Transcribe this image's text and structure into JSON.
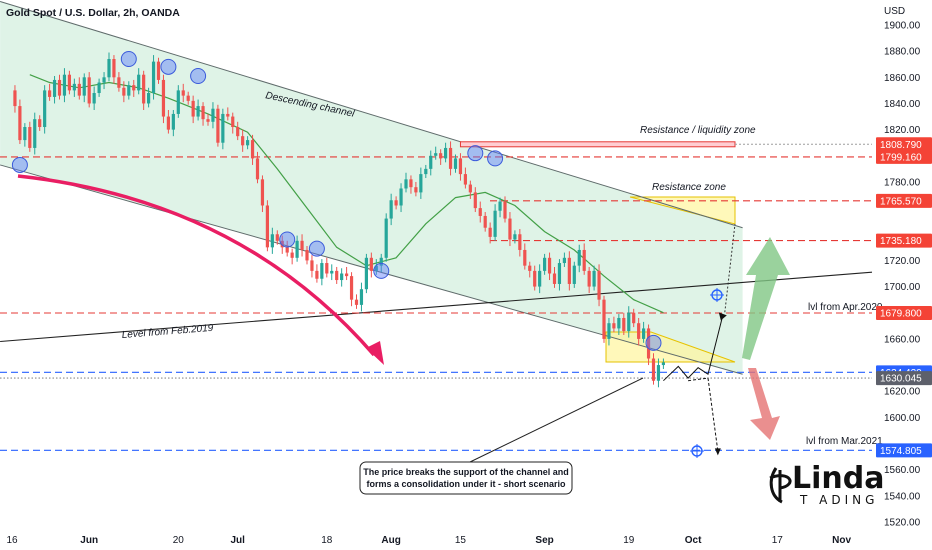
{
  "header": {
    "title": "Gold Spot / U.S. Dollar, 2h, OANDA",
    "currency": "USD"
  },
  "colors": {
    "up": "#26a69a",
    "down": "#ef5350",
    "channel_fill": "#d4efdf",
    "red_dash": "#e53935",
    "blue_dash": "#2962ff",
    "zone_fill": "#fff59d",
    "ma": "#43a047",
    "arrow_pink": "#e91e63",
    "arrow_green": "#81c784",
    "arrow_red": "#e57373",
    "tag_red": "#f44336",
    "tag_blue": "#2962ff",
    "tag_dark": "#5d606b",
    "circle": "#5c7cfa"
  },
  "chart_data": {
    "type": "candlestick",
    "title": "Gold Spot / U.S. Dollar, 2h, OANDA",
    "ylim": [
      1505,
      1920
    ],
    "y_ticks": [
      1520,
      1540,
      1560,
      1580,
      1600,
      1620,
      1640,
      1660,
      1680,
      1700,
      1720,
      1740,
      1760,
      1780,
      1800,
      1820,
      1840,
      1860,
      1880,
      1900
    ],
    "x_ticks": [
      {
        "label": "16",
        "x": 0,
        "bold": false
      },
      {
        "label": "Jun",
        "x": 16,
        "bold": true
      },
      {
        "label": "20",
        "x": 34,
        "bold": false
      },
      {
        "label": "Jul",
        "x": 46,
        "bold": true
      },
      {
        "label": "18",
        "x": 64,
        "bold": false
      },
      {
        "label": "Aug",
        "x": 77,
        "bold": true
      },
      {
        "label": "15",
        "x": 91,
        "bold": false
      },
      {
        "label": "Sep",
        "x": 108,
        "bold": true
      },
      {
        "label": "19",
        "x": 125,
        "bold": false
      },
      {
        "label": "Oct",
        "x": 138,
        "bold": true
      },
      {
        "label": "17",
        "x": 155,
        "bold": false
      },
      {
        "label": "Nov",
        "x": 168,
        "bold": true
      }
    ],
    "price_path": [
      [
        0,
        1850
      ],
      [
        1,
        1838
      ],
      [
        2,
        1812
      ],
      [
        3,
        1822
      ],
      [
        4,
        1806
      ],
      [
        5,
        1828
      ],
      [
        6,
        1822
      ],
      [
        7,
        1850
      ],
      [
        8,
        1845
      ],
      [
        9,
        1858
      ],
      [
        10,
        1846
      ],
      [
        11,
        1862
      ],
      [
        12,
        1850
      ],
      [
        13,
        1855
      ],
      [
        14,
        1846
      ],
      [
        15,
        1860
      ],
      [
        16,
        1840
      ],
      [
        17,
        1848
      ],
      [
        18,
        1856
      ],
      [
        19,
        1860
      ],
      [
        20,
        1874
      ],
      [
        21,
        1860
      ],
      [
        22,
        1852
      ],
      [
        23,
        1846
      ],
      [
        24,
        1854
      ],
      [
        25,
        1850
      ],
      [
        26,
        1862
      ],
      [
        27,
        1840
      ],
      [
        28,
        1848
      ],
      [
        29,
        1872
      ],
      [
        30,
        1858
      ],
      [
        31,
        1830
      ],
      [
        32,
        1820
      ],
      [
        33,
        1832
      ],
      [
        34,
        1850
      ],
      [
        35,
        1846
      ],
      [
        36,
        1842
      ],
      [
        37,
        1830
      ],
      [
        38,
        1838
      ],
      [
        39,
        1828
      ],
      [
        40,
        1826
      ],
      [
        41,
        1836
      ],
      [
        42,
        1810
      ],
      [
        43,
        1832
      ],
      [
        44,
        1830
      ],
      [
        45,
        1822
      ],
      [
        46,
        1815
      ],
      [
        47,
        1808
      ],
      [
        48,
        1812
      ],
      [
        49,
        1798
      ],
      [
        50,
        1782
      ],
      [
        51,
        1762
      ],
      [
        52,
        1730
      ],
      [
        53,
        1740
      ],
      [
        54,
        1735
      ],
      [
        55,
        1730
      ],
      [
        56,
        1726
      ],
      [
        57,
        1722
      ],
      [
        58,
        1735
      ],
      [
        59,
        1728
      ],
      [
        60,
        1720
      ],
      [
        61,
        1712
      ],
      [
        62,
        1706
      ],
      [
        63,
        1718
      ],
      [
        64,
        1710
      ],
      [
        65,
        1712
      ],
      [
        66,
        1705
      ],
      [
        67,
        1710
      ],
      [
        68,
        1708
      ],
      [
        69,
        1690
      ],
      [
        70,
        1686
      ],
      [
        71,
        1698
      ],
      [
        72,
        1722
      ],
      [
        73,
        1712
      ],
      [
        74,
        1716
      ],
      [
        75,
        1722
      ],
      [
        76,
        1752
      ],
      [
        77,
        1766
      ],
      [
        78,
        1762
      ],
      [
        79,
        1775
      ],
      [
        80,
        1782
      ],
      [
        81,
        1776
      ],
      [
        82,
        1772
      ],
      [
        83,
        1786
      ],
      [
        84,
        1790
      ],
      [
        85,
        1800
      ],
      [
        86,
        1802
      ],
      [
        87,
        1798
      ],
      [
        88,
        1806
      ],
      [
        89,
        1790
      ],
      [
        90,
        1798
      ],
      [
        91,
        1786
      ],
      [
        92,
        1778
      ],
      [
        93,
        1772
      ],
      [
        94,
        1760
      ],
      [
        95,
        1754
      ],
      [
        96,
        1745
      ],
      [
        97,
        1738
      ],
      [
        98,
        1758
      ],
      [
        99,
        1765
      ],
      [
        100,
        1752
      ],
      [
        101,
        1736
      ],
      [
        102,
        1740
      ],
      [
        103,
        1728
      ],
      [
        104,
        1716
      ],
      [
        105,
        1712
      ],
      [
        106,
        1700
      ],
      [
        107,
        1712
      ],
      [
        108,
        1722
      ],
      [
        109,
        1710
      ],
      [
        110,
        1702
      ],
      [
        111,
        1718
      ],
      [
        112,
        1722
      ],
      [
        113,
        1702
      ],
      [
        114,
        1716
      ],
      [
        115,
        1728
      ],
      [
        116,
        1712
      ],
      [
        117,
        1700
      ],
      [
        118,
        1712
      ],
      [
        119,
        1690
      ],
      [
        120,
        1660
      ],
      [
        121,
        1672
      ],
      [
        122,
        1668
      ],
      [
        123,
        1676
      ],
      [
        124,
        1666
      ],
      [
        125,
        1680
      ],
      [
        126,
        1672
      ],
      [
        127,
        1660
      ],
      [
        128,
        1668
      ],
      [
        129,
        1645
      ],
      [
        130,
        1628
      ],
      [
        131,
        1640
      ],
      [
        132,
        1642
      ]
    ],
    "moving_average": [
      [
        4,
        1862
      ],
      [
        8,
        1856
      ],
      [
        14,
        1852
      ],
      [
        20,
        1856
      ],
      [
        26,
        1852
      ],
      [
        32,
        1844
      ],
      [
        40,
        1832
      ],
      [
        48,
        1818
      ],
      [
        54,
        1790
      ],
      [
        60,
        1760
      ],
      [
        66,
        1730
      ],
      [
        72,
        1716
      ],
      [
        78,
        1722
      ],
      [
        84,
        1748
      ],
      [
        90,
        1768
      ],
      [
        96,
        1772
      ],
      [
        102,
        1762
      ],
      [
        108,
        1742
      ],
      [
        114,
        1728
      ],
      [
        120,
        1708
      ],
      [
        126,
        1690
      ],
      [
        132,
        1680
      ]
    ],
    "channel": {
      "upper": [
        [
          -2,
          1918
        ],
        [
          148,
          1745
        ]
      ],
      "lower": [
        [
          -2,
          1793
        ],
        [
          148,
          1633
        ]
      ]
    },
    "trendline_feb2019": {
      "from": [
        -2,
        1658
      ],
      "to": [
        175,
        1711
      ]
    },
    "levels": [
      {
        "value": 1808.79,
        "label": "1808.790",
        "color": "red",
        "tag": "red",
        "style": "solid"
      },
      {
        "value": 1799.16,
        "label": "1799.160",
        "color": "red",
        "tag": "red",
        "style": "dash"
      },
      {
        "value": 1765.57,
        "label": "1765.570",
        "color": "red",
        "tag": "red",
        "style": "dash"
      },
      {
        "value": 1735.18,
        "label": "1735.180",
        "color": "red",
        "tag": "red",
        "style": "dash"
      },
      {
        "value": 1679.8,
        "label": "1679.800",
        "color": "red",
        "tag": "red",
        "style": "dash"
      },
      {
        "value": 1634.42,
        "label": "1634.420",
        "color": "blue",
        "tag": "blue",
        "style": "dash"
      },
      {
        "value": 1630.045,
        "label": "1630.045",
        "color": "grey",
        "tag": "dark",
        "style": "dot"
      },
      {
        "value": 1574.805,
        "label": "1574.805",
        "color": "blue",
        "tag": "blue",
        "style": "dash"
      }
    ],
    "annotations": {
      "descending_channel": "Descending channel",
      "level_feb2019": "Level from Feb.2019",
      "resistance_liquidity": "Resistance / liquidity zone",
      "resistance_zone": "Resistance zone",
      "lvl_apr2020": "lvl from Apr.2020",
      "lvl_mar2021": "lvl from Mar.2021",
      "callout_line1": "The price breaks the support of the channel and",
      "callout_line2": "forms a consolidation under it - short scenario"
    },
    "touch_points": [
      [
        2,
        1793
      ],
      [
        24,
        1874
      ],
      [
        32,
        1868
      ],
      [
        38,
        1861
      ],
      [
        56,
        1736
      ],
      [
        62,
        1729
      ],
      [
        75,
        1712
      ],
      [
        94,
        1802
      ],
      [
        98,
        1798
      ],
      [
        130,
        1657
      ]
    ],
    "projection_path": [
      [
        132,
        1628
      ],
      [
        135,
        1639
      ],
      [
        137,
        1630
      ],
      [
        139,
        1638
      ],
      [
        141,
        1633
      ],
      [
        144,
        1678
      ]
    ],
    "short_path": [
      [
        137,
        1628
      ],
      [
        141,
        1630
      ],
      [
        143,
        1574
      ]
    ]
  },
  "logo": {
    "main": "Linda",
    "sub": "T ADING"
  }
}
